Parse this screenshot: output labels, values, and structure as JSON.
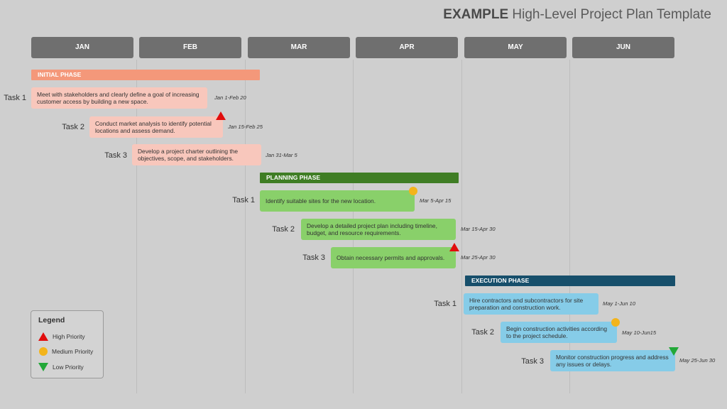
{
  "title": {
    "bold": "EXAMPLE",
    "rest": " High-Level Project Plan Template"
  },
  "months": [
    "JAN",
    "FEB",
    "MAR",
    "APR",
    "MAY",
    "JUN"
  ],
  "phases": [
    {
      "name": "INITIAL PHASE",
      "tasks": [
        {
          "label": "Task 1",
          "text": "Meet with stakeholders and clearly define a goal of increasing customer access by building a new space.",
          "dates": "Jan 1-Feb 20",
          "priority": ""
        },
        {
          "label": "Task 2",
          "text": "Conduct market analysis to identify potential locations and assess demand.",
          "dates": "Jan 15-Feb 25",
          "priority": "high"
        },
        {
          "label": "Task 3",
          "text": "Develop a project charter outlining the objectives, scope, and stakeholders.",
          "dates": "Jan 31-Mar 5",
          "priority": ""
        }
      ]
    },
    {
      "name": "PLANNING PHASE",
      "tasks": [
        {
          "label": "Task 1",
          "text": "Identify suitable sites for the new location.",
          "dates": "Mar 5-Apr 15",
          "priority": "medium"
        },
        {
          "label": "Task 2",
          "text": "Develop a detailed project plan including timeline, budget, and resource requirements.",
          "dates": "Mar 15-Apr 30",
          "priority": ""
        },
        {
          "label": "Task 3",
          "text": "Obtain necessary permits and approvals.",
          "dates": "Mar 25-Apr 30",
          "priority": "high"
        }
      ]
    },
    {
      "name": "EXECUTION PHASE",
      "tasks": [
        {
          "label": "Task 1",
          "text": "Hire contractors and subcontractors for site preparation and construction work.",
          "dates": "May 1-Jun 10",
          "priority": ""
        },
        {
          "label": "Task 2",
          "text": "Begin construction activities according to the project schedule.",
          "dates": "May 10-Jun15",
          "priority": "medium"
        },
        {
          "label": "Task 3",
          "text": "Monitor construction progress and address any issues or delays.",
          "dates": "May 25-Jun 30",
          "priority": "low"
        }
      ]
    }
  ],
  "legend": {
    "title": "Legend",
    "items": [
      {
        "label": "High Priority",
        "icon": "high-priority-triangle-icon"
      },
      {
        "label": "Medium Priority",
        "icon": "medium-priority-circle-icon"
      },
      {
        "label": "Low Priority",
        "icon": "low-priority-triangle-icon"
      }
    ]
  },
  "colors": {
    "initial_phase": "#f4987a",
    "initial_task": "#f8c7bc",
    "planning_phase": "#3f7d24",
    "planning_task": "#89d06a",
    "execution_phase": "#174f6b",
    "execution_task": "#86cce8",
    "high": "#e10d0d",
    "medium": "#f3b41b",
    "low": "#22a838"
  }
}
